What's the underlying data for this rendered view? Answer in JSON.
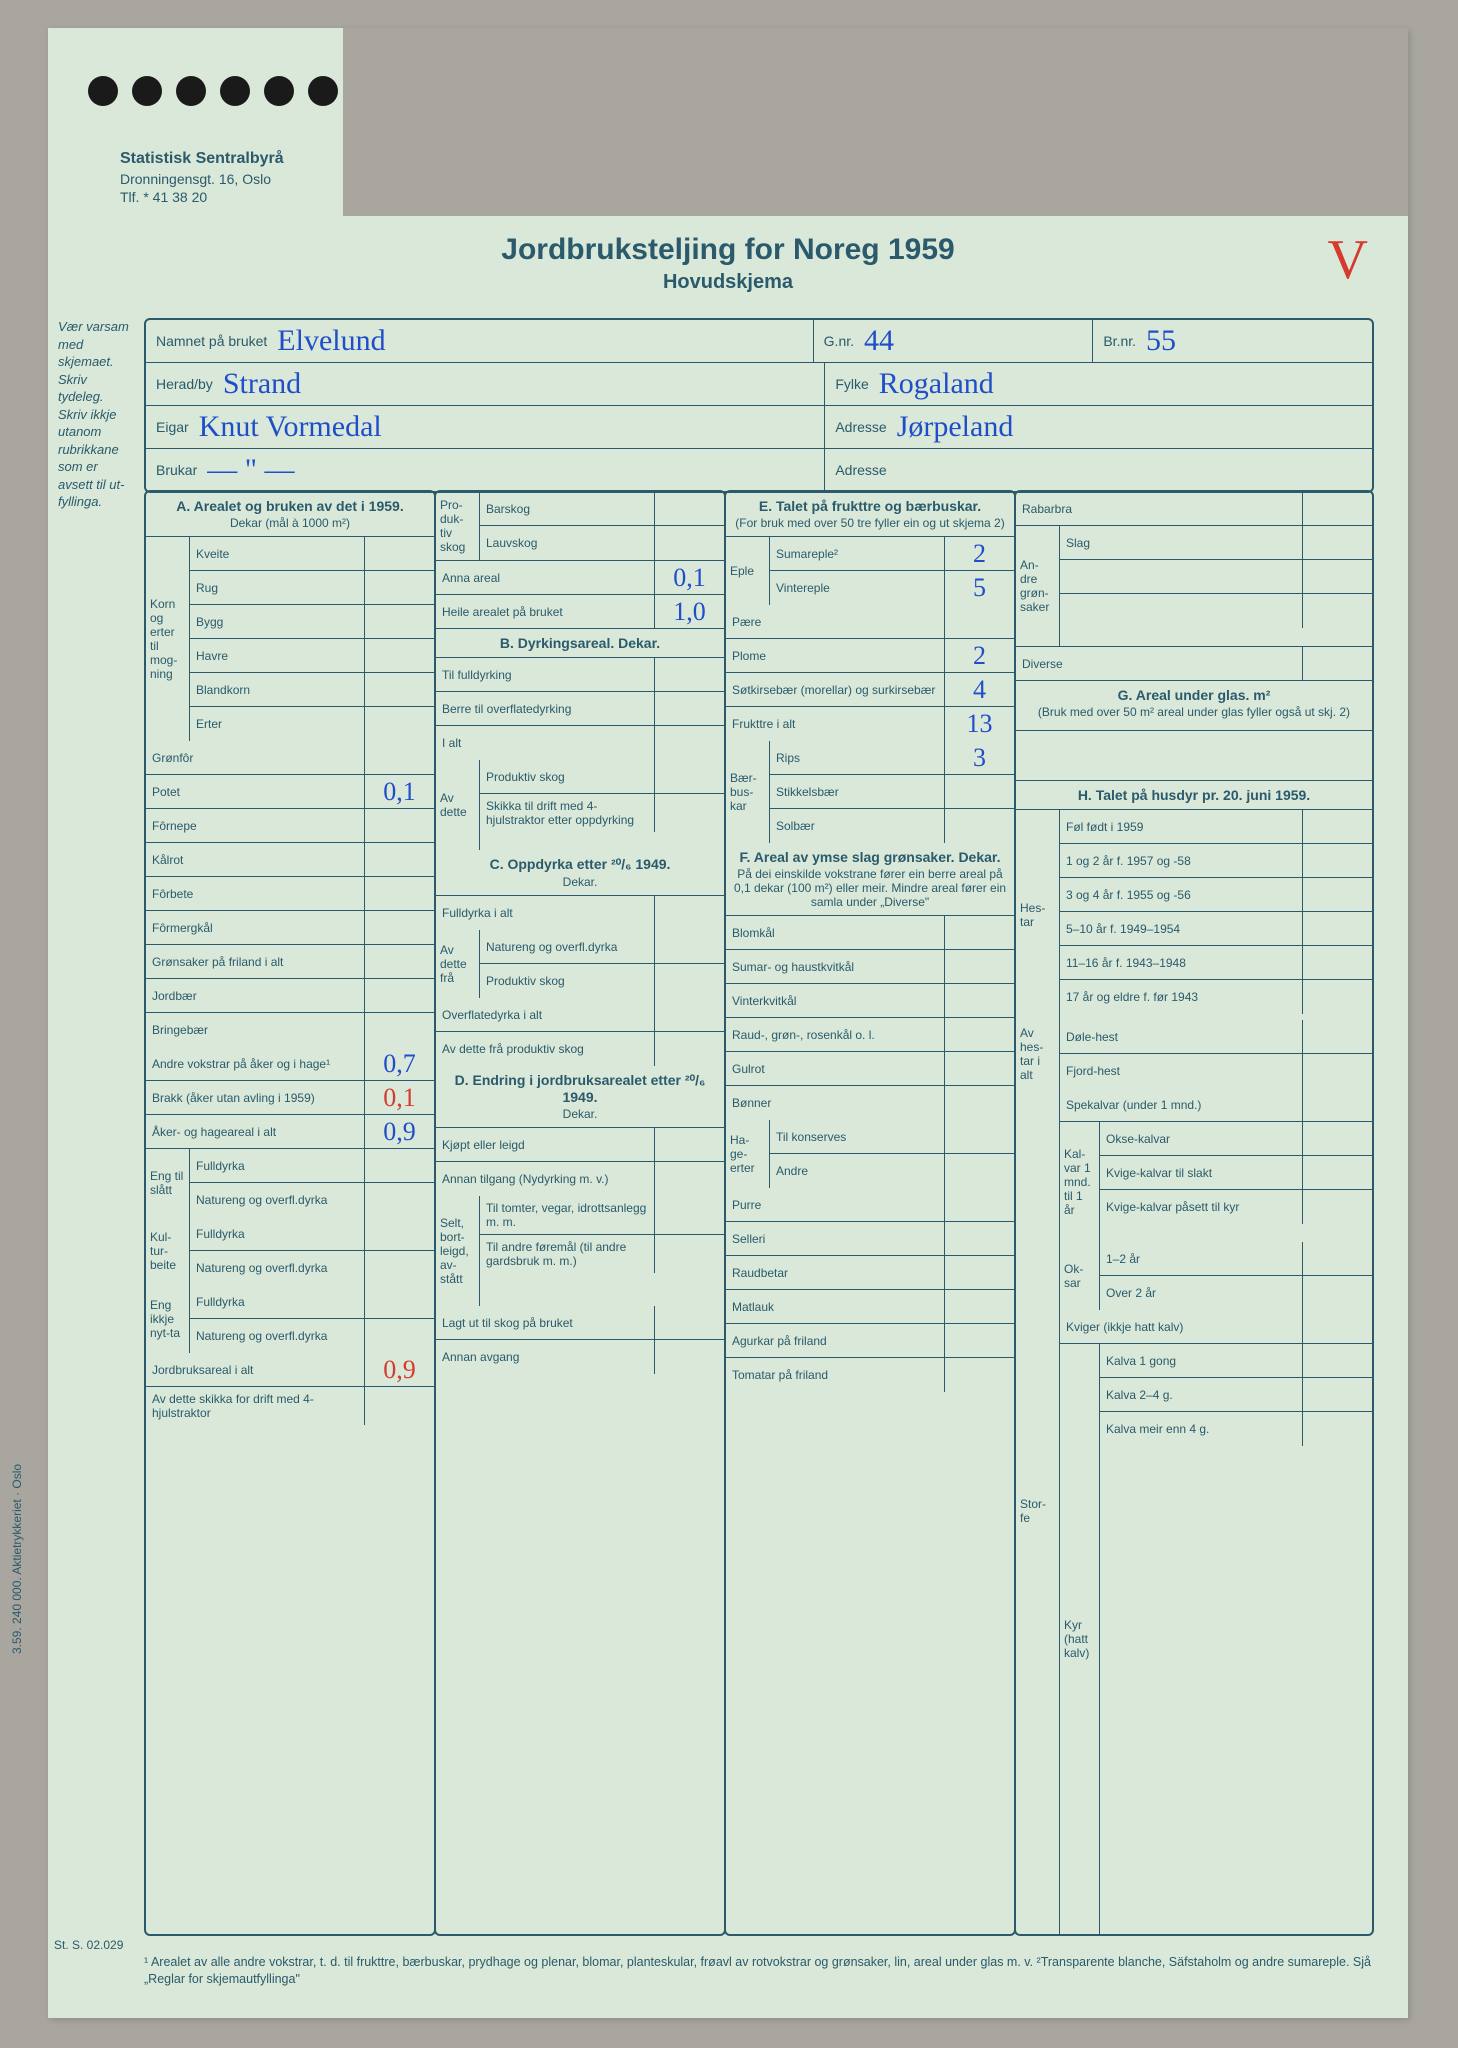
{
  "letterhead": {
    "org": "Statistisk Sentralbyrå",
    "addr": "Dronningensgt. 16, Oslo",
    "tlf": "Tlf. * 41 38 20"
  },
  "title": {
    "main": "Jordbruksteljing for Noreg 1959",
    "sub": "Hovudskjema"
  },
  "vmark": "V",
  "side_note": "Vær varsam med skjemaet. Skriv tydeleg. Skriv ikkje utanom rubrikkane som er avsett til ut-fyllinga.",
  "side_print": "3.59. 240 000. Aktietrykkeriet · Oslo",
  "form_code": "St. S. 02.029",
  "id": {
    "namn_lab": "Namnet på bruket",
    "namn": "Elvelund",
    "gnr_lab": "G.nr.",
    "gnr": "44",
    "brnr_lab": "Br.nr.",
    "brnr": "55",
    "herad_lab": "Herad/by",
    "herad": "Strand",
    "fylke_lab": "Fylke",
    "fylke": "Rogaland",
    "eigar_lab": "Eigar",
    "eigar": "Knut Vormedal",
    "adr1_lab": "Adresse",
    "adr1": "Jørpeland",
    "brukar_lab": "Brukar",
    "brukar": "— \" —",
    "adr2_lab": "Adresse",
    "adr2": ""
  },
  "A": {
    "head": "A. Arealet og bruken av det i 1959.",
    "sub": "Dekar (mål à 1000 m²)",
    "side1": "Korn og erter til mog-ning",
    "rows1": [
      {
        "l": "Kveite",
        "v": ""
      },
      {
        "l": "Rug",
        "v": ""
      },
      {
        "l": "Bygg",
        "v": ""
      },
      {
        "l": "Havre",
        "v": ""
      },
      {
        "l": "Blandkorn",
        "v": ""
      },
      {
        "l": "Erter",
        "v": ""
      }
    ],
    "gronfor": "Grønfôr",
    "potet_l": "Potet",
    "potet_v": "0,1",
    "rows2": [
      {
        "l": "Fôrnepe",
        "v": ""
      },
      {
        "l": "Kålrot",
        "v": ""
      },
      {
        "l": "Fôrbete",
        "v": ""
      },
      {
        "l": "Fôrmergkål",
        "v": ""
      },
      {
        "l": "Grønsaker på friland i alt",
        "v": ""
      },
      {
        "l": "Jordbær",
        "v": ""
      },
      {
        "l": "Bringebær",
        "v": ""
      }
    ],
    "andre_l": "Andre vokstrar på åker og i hage¹",
    "andre_v": "0,7",
    "brakk_l": "Brakk (åker utan avling i 1959)",
    "brakk_v": "0,1",
    "aker_l": "Åker- og hageareal i alt",
    "aker_v": "0,9",
    "side2": "Eng til slått",
    "eng1": [
      {
        "l": "Fulldyrka",
        "v": ""
      },
      {
        "l": "Natureng og overfl.dyrka",
        "v": ""
      }
    ],
    "side3": "Kul-tur-beite",
    "kul1": [
      {
        "l": "Fulldyrka",
        "v": ""
      },
      {
        "l": "Natureng og overfl.dyrka",
        "v": ""
      }
    ],
    "side4": "Eng ikkje nyt-ta",
    "eng2": [
      {
        "l": "Fulldyrka",
        "v": ""
      },
      {
        "l": "Natureng og overfl.dyrka",
        "v": ""
      }
    ],
    "jord_l": "Jordbruksareal i alt",
    "jord_v": "0,9",
    "av_l": "Av dette skikka for drift med 4-hjulstraktor",
    "av_v": ""
  },
  "B": {
    "prod_head": "Pro-duk-tiv skog",
    "bar": "Barskog",
    "lauv": "Lauvskog",
    "anna_l": "Anna areal",
    "anna_v": "0,1",
    "heile_l": "Heile arealet på bruket",
    "heile_v": "1,0",
    "bhead": "B. Dyrkingsareal. Dekar.",
    "rows": [
      {
        "l": "Til fulldyrking",
        "v": ""
      },
      {
        "l": "Berre til overflatedyrking",
        "v": ""
      },
      {
        "l": "I alt",
        "v": ""
      }
    ],
    "avdette": "Av dette",
    "avrows": [
      {
        "l": "Produktiv skog",
        "v": ""
      },
      {
        "l": "Skikka til drift med 4-hjulstraktor etter oppdyrking",
        "v": ""
      }
    ],
    "chead": "C. Oppdyrka etter ²⁰/₆ 1949.",
    "csub": "Dekar.",
    "crows": [
      {
        "l": "Fulldyrka i alt",
        "v": ""
      }
    ],
    "avdette2": "Av dette frå",
    "crows2": [
      {
        "l": "Natureng og overfl.dyrka",
        "v": ""
      },
      {
        "l": "Produktiv skog",
        "v": ""
      }
    ],
    "crows3": [
      {
        "l": "Overflatedyrka i alt",
        "v": ""
      },
      {
        "l": "Av dette frå produktiv skog",
        "v": ""
      }
    ],
    "dhead": "D. Endring i jordbruksarealet etter ²⁰/₆ 1949.",
    "dsub": "Dekar.",
    "drows": [
      {
        "l": "Kjøpt eller leigd",
        "v": ""
      },
      {
        "l": "Annan tilgang (Nydyrking m. v.)",
        "v": ""
      }
    ],
    "selt": "Selt, bort-leigd, av-stått",
    "drows2": [
      {
        "l": "Til tomter, vegar, idrottsanlegg m. m.",
        "v": ""
      },
      {
        "l": "Til andre føremål (til andre gardsbruk m. m.)",
        "v": ""
      }
    ],
    "drows3": [
      {
        "l": "Lagt ut til skog på bruket",
        "v": ""
      },
      {
        "l": "Annan avgang",
        "v": ""
      }
    ]
  },
  "E": {
    "head": "E. Talet på frukttre og bærbuskar.",
    "sub": "(For bruk med over 50 tre fyller ein og ut skjema 2)",
    "eple": "Eple",
    "erows": [
      {
        "l": "Sumareple²",
        "v": "2"
      },
      {
        "l": "Vintereple",
        "v": "5"
      }
    ],
    "rows": [
      {
        "l": "Pære",
        "v": ""
      },
      {
        "l": "Plome",
        "v": "2"
      },
      {
        "l": "Søtkirsebær (morellar) og surkirsebær",
        "v": "4"
      },
      {
        "l": "Frukttre i alt",
        "v": "13"
      }
    ],
    "baer": "Bær-bus-kar",
    "brows": [
      {
        "l": "Rips",
        "v": "3"
      },
      {
        "l": "Stikkelsbær",
        "v": ""
      },
      {
        "l": "Solbær",
        "v": ""
      }
    ],
    "fhead": "F. Areal av ymse slag grønsaker. Dekar.",
    "fsub": "På dei einskilde vokstrane fører ein berre areal på 0,1 dekar (100 m²) eller meir. Mindre areal fører ein samla under „Diverse\"",
    "frows": [
      {
        "l": "Blomkål",
        "v": ""
      },
      {
        "l": "Sumar- og haustkvitkål",
        "v": ""
      },
      {
        "l": "Vinterkvitkål",
        "v": ""
      },
      {
        "l": "Raud-, grøn-, rosenkål o. l.",
        "v": ""
      },
      {
        "l": "Gulrot",
        "v": ""
      },
      {
        "l": "Bønner",
        "v": ""
      }
    ],
    "hage": "Ha-ge-erter",
    "hrows": [
      {
        "l": "Til konserves",
        "v": ""
      },
      {
        "l": "Andre",
        "v": ""
      }
    ],
    "frows2": [
      {
        "l": "Purre",
        "v": ""
      },
      {
        "l": "Selleri",
        "v": ""
      },
      {
        "l": "Raudbetar",
        "v": ""
      },
      {
        "l": "Matlauk",
        "v": ""
      },
      {
        "l": "Agurkar på friland",
        "v": ""
      },
      {
        "l": "Tomatar på friland",
        "v": ""
      }
    ]
  },
  "G": {
    "rab": "Rabarbra",
    "andre": "An-dre grøn-saker",
    "slag": "Slag",
    "div": "Diverse",
    "ghead": "G. Areal under glas. m²",
    "gsub": "(Bruk med over 50 m² areal under glas fyller også ut skj. 2)",
    "hhead": "H. Talet på husdyr pr. 20. juni 1959.",
    "hestar": "Hes-tar",
    "hrows": [
      {
        "l": "Føl født i 1959",
        "v": ""
      },
      {
        "l": "1 og 2 år f. 1957 og -58",
        "v": ""
      },
      {
        "l": "3 og 4 år f. 1955 og -56",
        "v": ""
      },
      {
        "l": "5–10 år f. 1949–1954",
        "v": ""
      },
      {
        "l": "11–16 år f. 1943–1948",
        "v": ""
      },
      {
        "l": "17 år og eldre f. før 1943",
        "v": ""
      }
    ],
    "avhest": "Av hes-tar i alt",
    "avrows": [
      {
        "l": "Døle-hest",
        "v": ""
      },
      {
        "l": "Fjord-hest",
        "v": ""
      }
    ],
    "storfe": "Stor-fe",
    "spek_l": "Spekalvar (under 1 mnd.)",
    "kalvar": "Kal-var 1 mnd. til 1 år",
    "krows": [
      {
        "l": "Okse-kalvar",
        "v": ""
      },
      {
        "l": "Kvige-kalvar til slakt",
        "v": ""
      },
      {
        "l": "Kvige-kalvar påsett til kyr",
        "v": ""
      }
    ],
    "oksar": "Ok-sar",
    "orows": [
      {
        "l": "1–2 år",
        "v": ""
      },
      {
        "l": "Over 2 år",
        "v": ""
      }
    ],
    "kviger_l": "Kviger (ikkje hatt kalv)",
    "kyr": "Kyr (hatt kalv)",
    "kyrows": [
      {
        "l": "Kalva 1 gong",
        "v": ""
      },
      {
        "l": "Kalva 2–4 g.",
        "v": ""
      },
      {
        "l": "Kalva meir enn 4 g.",
        "v": ""
      }
    ]
  },
  "footnote": "¹ Arealet av alle andre vokstrar, t. d. til frukttre, bærbuskar, prydhage og plenar, blomar, planteskular, frøavl av rotvokstrar og grønsaker, lin, areal under glas m. v.  ²Transparente blanche, Säfstaholm og andre sumareple. Sjå „Reglar for skjemautfyllinga\""
}
